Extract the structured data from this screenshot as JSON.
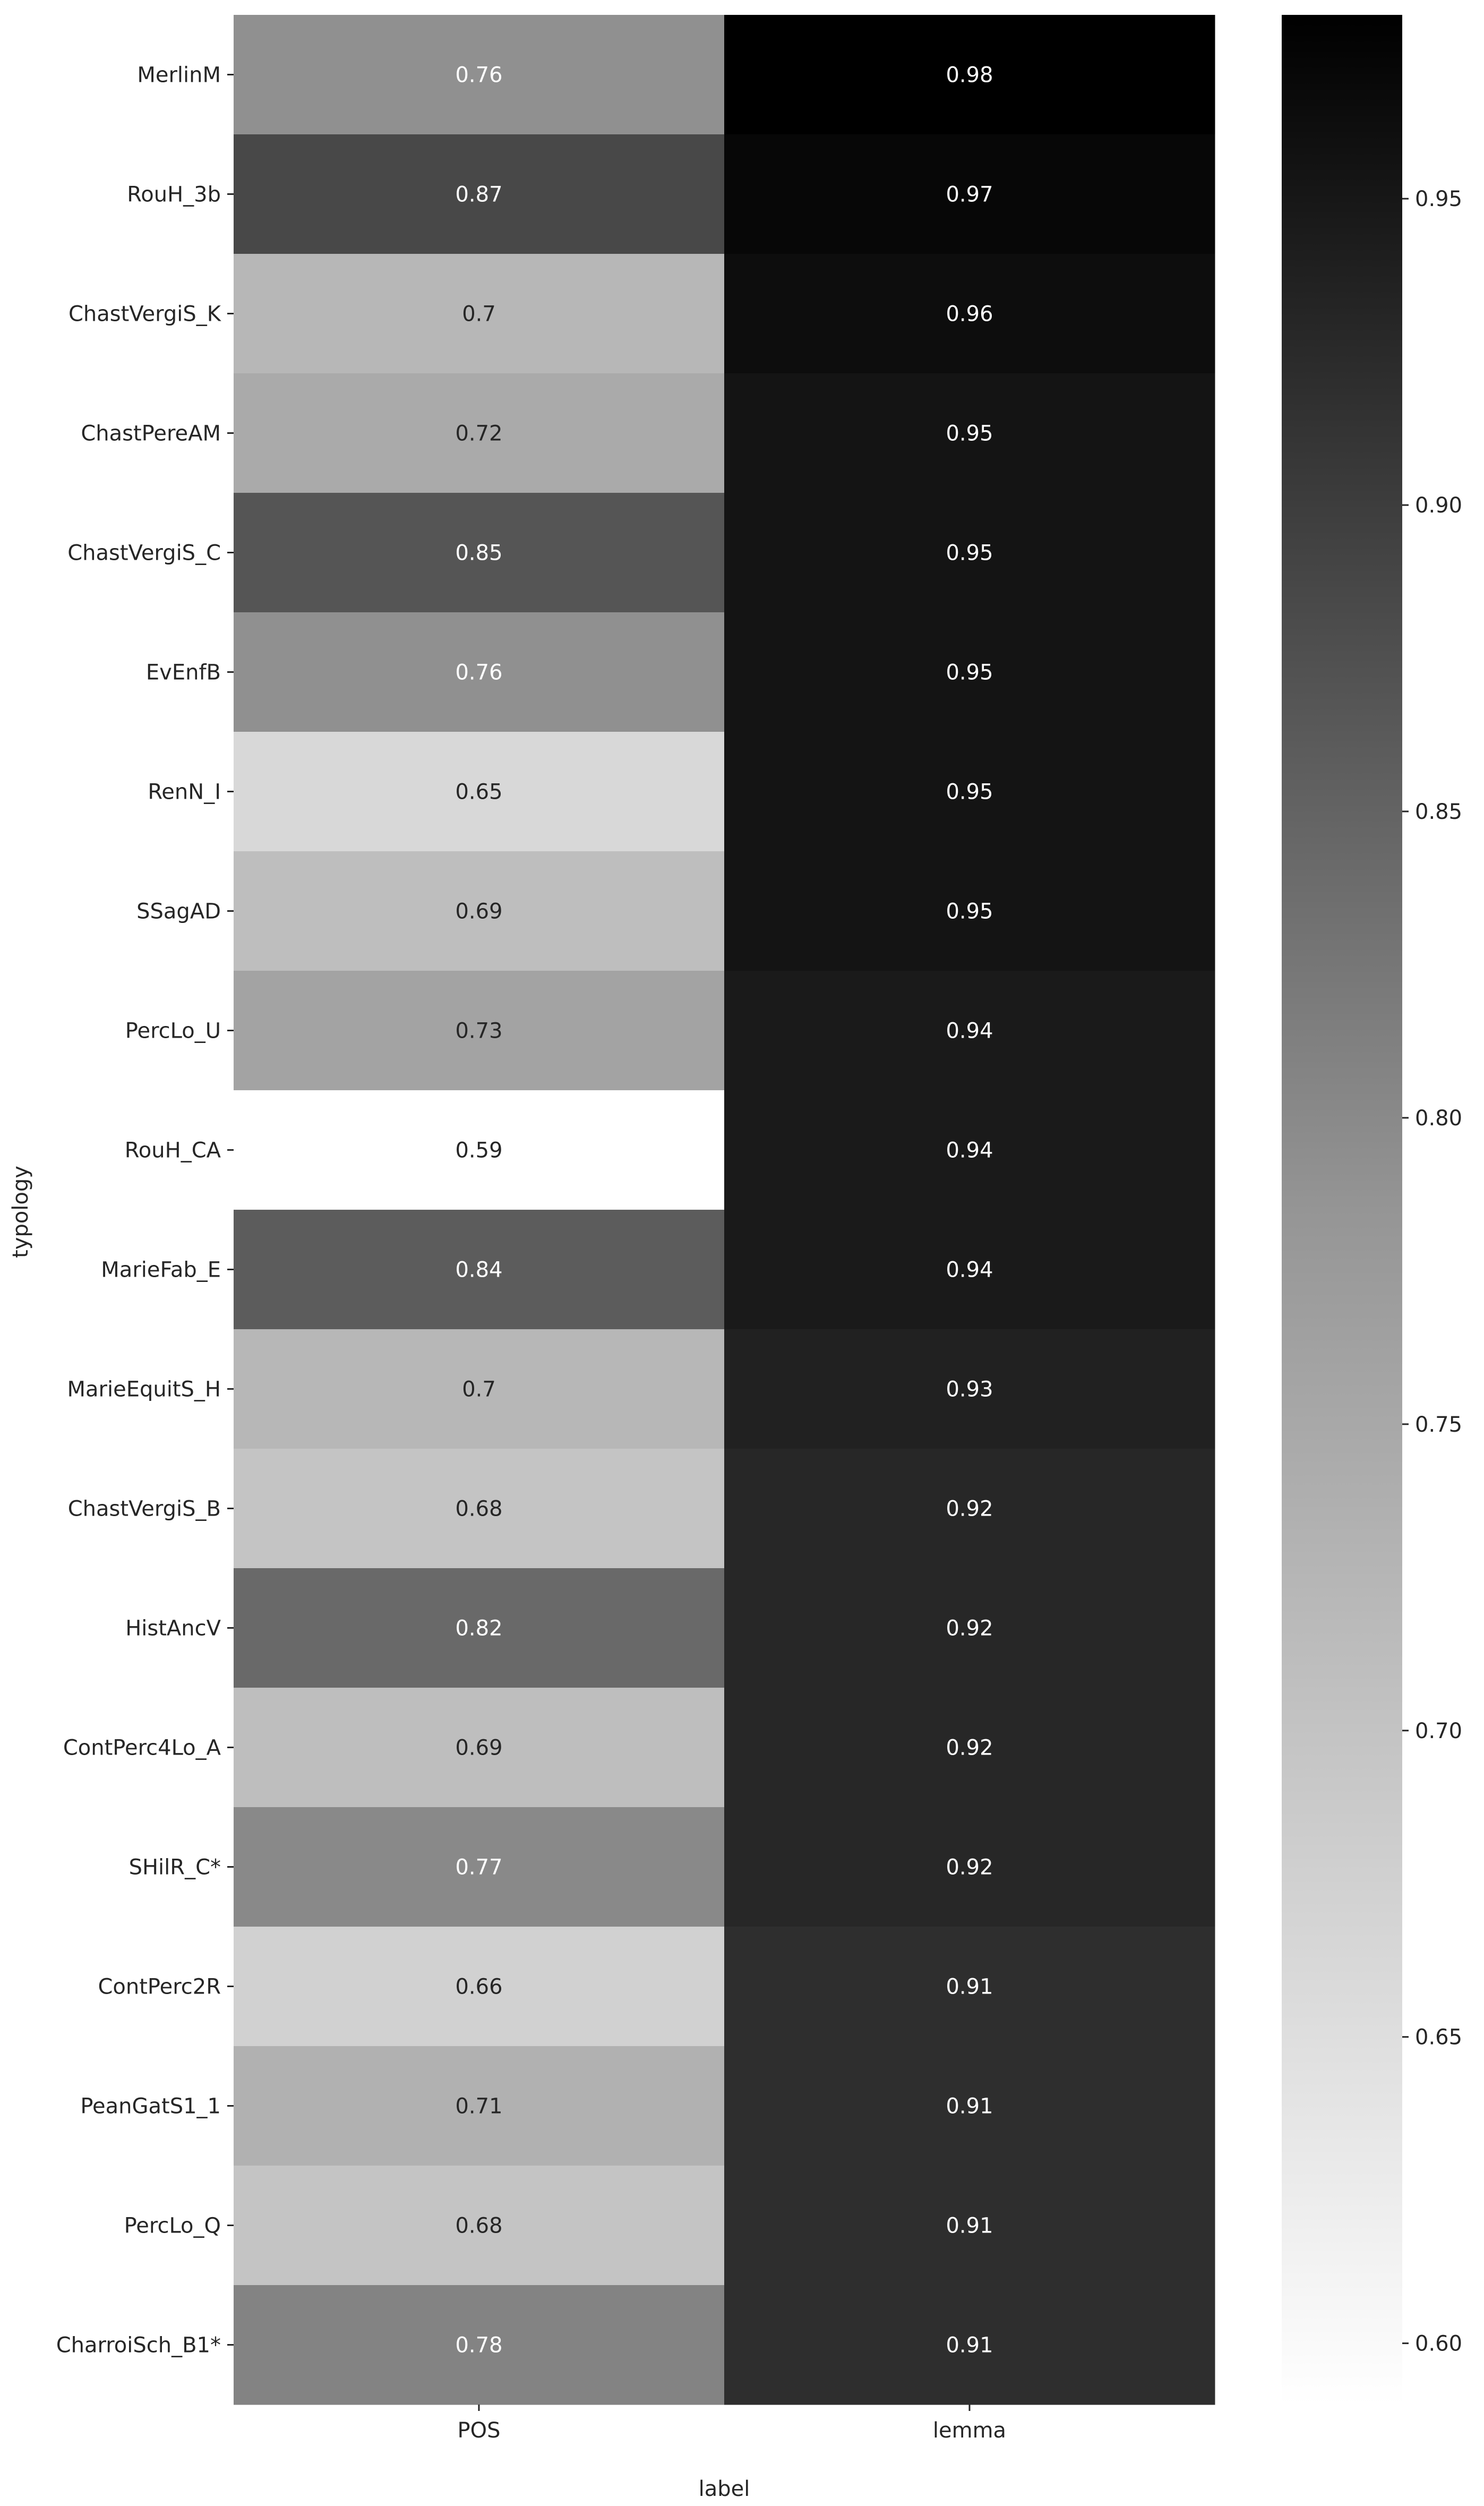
{
  "chart_data": {
    "type": "heatmap",
    "title": "",
    "xlabel": "label",
    "ylabel": "typology",
    "x_categories": [
      "POS",
      "lemma"
    ],
    "y_categories": [
      "MerlinM",
      "RouH_3b",
      "ChastVergiS_K",
      "ChastPereAM",
      "ChastVergiS_C",
      "EvEnfB",
      "RenN_I",
      "SSagAD",
      "PercLo_U",
      "RouH_CA",
      "MarieFab_E",
      "MarieEquitS_H",
      "ChastVergiS_B",
      "HistAncV",
      "ContPerc4Lo_A",
      "SHilR_C*",
      "ContPerc2R",
      "PeanGatS1_1",
      "PercLo_Q",
      "CharroiSch_B1*"
    ],
    "values": [
      [
        0.76,
        0.98
      ],
      [
        0.87,
        0.97
      ],
      [
        0.7,
        0.96
      ],
      [
        0.72,
        0.95
      ],
      [
        0.85,
        0.95
      ],
      [
        0.76,
        0.95
      ],
      [
        0.65,
        0.95
      ],
      [
        0.69,
        0.95
      ],
      [
        0.73,
        0.94
      ],
      [
        0.59,
        0.94
      ],
      [
        0.84,
        0.94
      ],
      [
        0.7,
        0.93
      ],
      [
        0.68,
        0.92
      ],
      [
        0.82,
        0.92
      ],
      [
        0.69,
        0.92
      ],
      [
        0.77,
        0.92
      ],
      [
        0.66,
        0.91
      ],
      [
        0.71,
        0.91
      ],
      [
        0.68,
        0.91
      ],
      [
        0.78,
        0.91
      ]
    ],
    "colorbar": {
      "vmin": 0.59,
      "vmax": 0.98,
      "ticks": [
        "0.60",
        "0.65",
        "0.70",
        "0.75",
        "0.80",
        "0.85",
        "0.90",
        "0.95"
      ],
      "colormap": "Greys"
    },
    "colors": {
      "low": "#ffffff",
      "high": "#000000",
      "text_dark": "#262626",
      "text_light": "#ffffff"
    }
  }
}
